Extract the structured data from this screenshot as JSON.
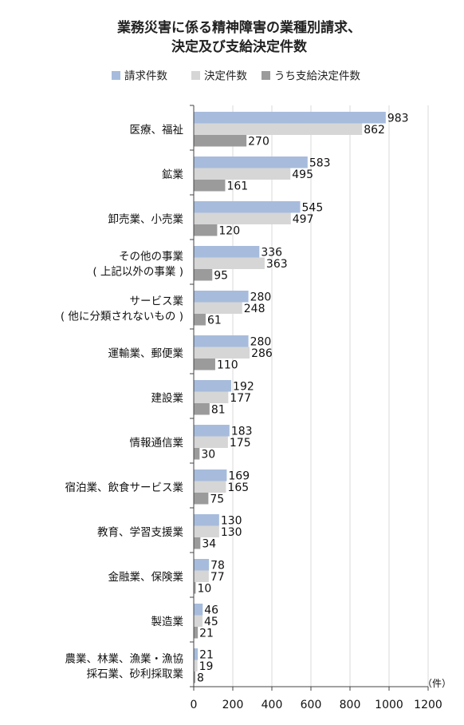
{
  "chart_data": {
    "type": "bar",
    "orientation": "horizontal",
    "title_lines": [
      "業務災害に係る精神障害の業種別請求、",
      "決定及び支給決定件数"
    ],
    "unit": "（件）",
    "xlim": [
      0,
      1200
    ],
    "xticks": [
      0,
      200,
      400,
      600,
      800,
      1000,
      1200
    ],
    "grid": true,
    "legend_position": "top",
    "categories": [
      [
        "医療、福祉"
      ],
      [
        "鉱業"
      ],
      [
        "卸売業、小売業"
      ],
      [
        "その他の事業",
        "( 上記以外の事業 )"
      ],
      [
        "サービス業",
        "( 他に分類されないもの )"
      ],
      [
        "運輸業、郵便業"
      ],
      [
        "建設業"
      ],
      [
        "情報通信業"
      ],
      [
        "宿泊業、飲食サービス業"
      ],
      [
        "教育、学習支援業"
      ],
      [
        "金融業、保険業"
      ],
      [
        "製造業"
      ],
      [
        "農業、林業、漁業・漁協",
        "採石業、砂利採取業"
      ]
    ],
    "series": [
      {
        "name": "請求件数",
        "color": "#a7bcdc",
        "values": [
          983,
          583,
          545,
          336,
          280,
          280,
          192,
          183,
          169,
          130,
          78,
          46,
          21
        ]
      },
      {
        "name": "決定件数",
        "color": "#d6d6d6",
        "values": [
          862,
          495,
          497,
          363,
          248,
          286,
          177,
          175,
          165,
          130,
          77,
          45,
          19
        ]
      },
      {
        "name": "うち支給決定件数",
        "color": "#9b9b9b",
        "values": [
          270,
          161,
          120,
          95,
          61,
          110,
          81,
          30,
          75,
          34,
          10,
          21,
          8
        ]
      }
    ]
  }
}
